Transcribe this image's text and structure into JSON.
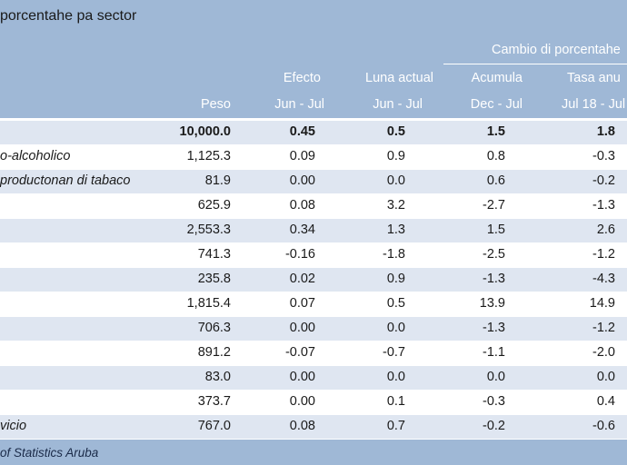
{
  "title": "porcentahe pa sector",
  "headers": {
    "group": "Cambio di porcentahe",
    "peso": "Peso",
    "efecto_top": "Efecto",
    "efecto_sub": "Jun - Jul",
    "luna_top": "Luna actual",
    "luna_sub": "Jun - Jul",
    "acum_top": "Acumula",
    "acum_sub": "Dec - Jul",
    "tasa_top": "Tasa anu",
    "tasa_sub": "Jul 18 - Jul"
  },
  "total_row": {
    "peso": "10,000.0",
    "efecto": "0.45",
    "luna": "0.5",
    "acum": "1.5",
    "tasa": "1.8"
  },
  "rows": [
    {
      "label": "o-alcoholico",
      "peso": "1,125.3",
      "efecto": "0.09",
      "luna": "0.9",
      "acum": "0.8",
      "tasa": "-0.3"
    },
    {
      "label": "productonan di tabaco",
      "peso": "81.9",
      "efecto": "0.00",
      "luna": "0.0",
      "acum": "0.6",
      "tasa": "-0.2"
    },
    {
      "label": "",
      "peso": "625.9",
      "efecto": "0.08",
      "luna": "3.2",
      "acum": "-2.7",
      "tasa": "-1.3"
    },
    {
      "label": "",
      "peso": "2,553.3",
      "efecto": "0.34",
      "luna": "1.3",
      "acum": "1.5",
      "tasa": "2.6"
    },
    {
      "label": "",
      "peso": "741.3",
      "efecto": "-0.16",
      "luna": "-1.8",
      "acum": "-2.5",
      "tasa": "-1.2"
    },
    {
      "label": "",
      "peso": "235.8",
      "efecto": "0.02",
      "luna": "0.9",
      "acum": "-1.3",
      "tasa": "-4.3"
    },
    {
      "label": "",
      "peso": "1,815.4",
      "efecto": "0.07",
      "luna": "0.5",
      "acum": "13.9",
      "tasa": "14.9"
    },
    {
      "label": "",
      "peso": "706.3",
      "efecto": "0.00",
      "luna": "0.0",
      "acum": "-1.3",
      "tasa": "-1.2"
    },
    {
      "label": "",
      "peso": "891.2",
      "efecto": "-0.07",
      "luna": "-0.7",
      "acum": "-1.1",
      "tasa": "-2.0"
    },
    {
      "label": "",
      "peso": "83.0",
      "efecto": "0.00",
      "luna": "0.0",
      "acum": "0.0",
      "tasa": "0.0"
    },
    {
      "label": "",
      "peso": "373.7",
      "efecto": "0.00",
      "luna": "0.1",
      "acum": "-0.3",
      "tasa": "0.4"
    },
    {
      "label": "vicio",
      "peso": "767.0",
      "efecto": "0.08",
      "luna": "0.7",
      "acum": "-0.2",
      "tasa": "-0.6"
    }
  ],
  "footer": {
    "source": "of Statistics Aruba"
  },
  "colors": {
    "header_bg": "#9fb8d6",
    "alt_row": "#dfe6f1",
    "header_text": "#ffffff"
  }
}
